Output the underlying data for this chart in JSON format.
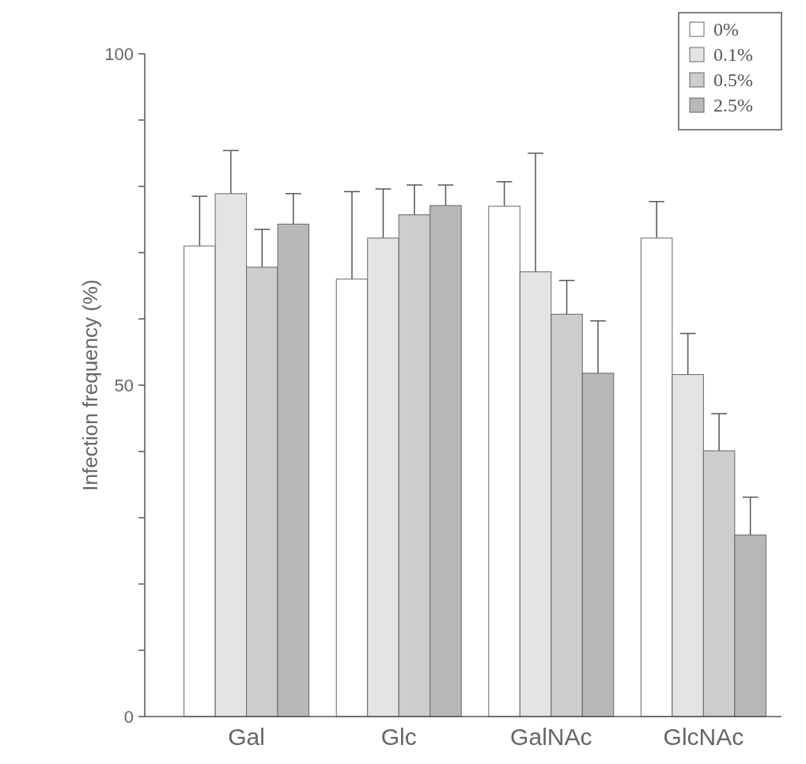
{
  "chart_data": {
    "type": "bar",
    "ylabel": "Infection frequency (%)",
    "categories": [
      "Gal",
      "Glc",
      "GalNAc",
      "GlcNAc"
    ],
    "series": [
      {
        "name": "0%",
        "color": "#ffffff",
        "values": [
          71.0,
          66.0,
          77.0,
          72.2
        ],
        "errors": [
          [
            71.0,
            78.5
          ],
          [
            66.0,
            79.2
          ],
          [
            77.0,
            80.7
          ],
          [
            72.2,
            77.7
          ]
        ]
      },
      {
        "name": "0.1%",
        "color": "#e4e4e4",
        "values": [
          78.9,
          72.2,
          67.1,
          51.6
        ],
        "errors": [
          [
            78.9,
            85.4
          ],
          [
            72.2,
            79.6
          ],
          [
            67.1,
            85.0
          ],
          [
            51.6,
            57.8
          ]
        ]
      },
      {
        "name": "0.5%",
        "color": "#cdcdcd",
        "values": [
          67.8,
          75.7,
          60.7,
          40.1
        ],
        "errors": [
          [
            67.8,
            73.5
          ],
          [
            75.7,
            80.2
          ],
          [
            60.7,
            65.8
          ],
          [
            40.1,
            45.7
          ]
        ]
      },
      {
        "name": "2.5%",
        "color": "#b8b8b8",
        "values": [
          74.3,
          77.1,
          51.8,
          27.4
        ],
        "errors": [
          [
            74.3,
            78.9
          ],
          [
            77.1,
            80.2
          ],
          [
            51.8,
            59.7
          ],
          [
            27.4,
            33.1
          ]
        ]
      }
    ],
    "ylim": [
      0,
      100
    ],
    "yticks": [
      0,
      {
        "value": 10,
        "label": null
      },
      {
        "value": 20,
        "label": null
      },
      {
        "value": 30,
        "label": null
      },
      {
        "value": 40,
        "label": null
      },
      50,
      {
        "value": 60,
        "label": null
      },
      {
        "value": 70,
        "label": null
      },
      {
        "value": 80,
        "label": null
      },
      {
        "value": 90,
        "label": null
      },
      100
    ],
    "legend": "top right"
  }
}
